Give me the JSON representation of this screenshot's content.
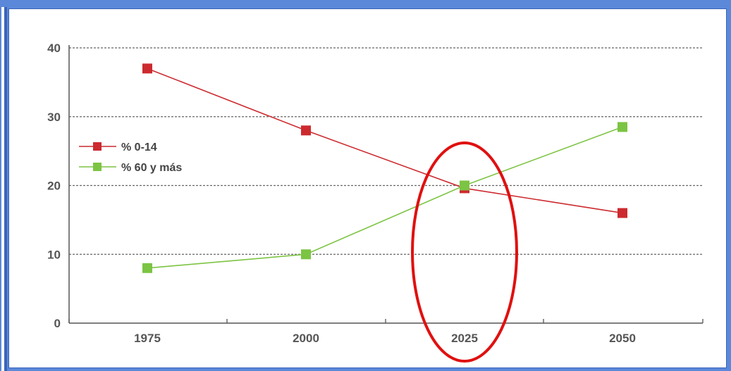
{
  "chart_data": {
    "type": "line",
    "x": [
      "1975",
      "2000",
      "2025",
      "2050"
    ],
    "ylim": [
      0,
      40
    ],
    "yticks": [
      "0",
      "10",
      "20",
      "30",
      "40"
    ],
    "grid": true,
    "legend_position": "left",
    "series": [
      {
        "name": "% 0-14",
        "values": [
          37,
          28,
          19.6,
          16
        ],
        "color": "#cc2a2f"
      },
      {
        "name": "% 60 y más",
        "values": [
          8,
          10,
          20,
          28.5
        ],
        "color": "#7cc443"
      }
    ],
    "annotation": {
      "type": "ellipse",
      "category": "2025",
      "color": "#e01010"
    }
  }
}
